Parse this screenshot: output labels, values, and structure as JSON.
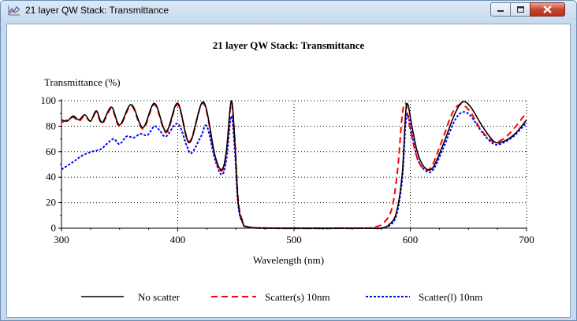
{
  "window": {
    "title": "21 layer QW Stack: Transmittance",
    "controls": [
      "minimize",
      "maximize",
      "close"
    ]
  },
  "chart_data": {
    "type": "line",
    "title": "21 layer QW Stack: Transmittance",
    "xlabel": "Wavelength (nm)",
    "ylabel": "Transmittance (%)",
    "xlim": [
      300,
      700
    ],
    "ylim": [
      0,
      100
    ],
    "x_ticks": [
      300,
      400,
      500,
      600,
      700
    ],
    "y_ticks": [
      0,
      20,
      40,
      60,
      80,
      100
    ],
    "grid": true,
    "legend_position": "bottom",
    "series": [
      {
        "name": "No scatter",
        "color": "#000000",
        "style": "solid",
        "points": [
          [
            300,
            85
          ],
          [
            305,
            84
          ],
          [
            310,
            88
          ],
          [
            315,
            85
          ],
          [
            320,
            89
          ],
          [
            325,
            84
          ],
          [
            330,
            92
          ],
          [
            335,
            83
          ],
          [
            343,
            95
          ],
          [
            350,
            81
          ],
          [
            360,
            97
          ],
          [
            370,
            79
          ],
          [
            380,
            98
          ],
          [
            390,
            76
          ],
          [
            400,
            98
          ],
          [
            410,
            67
          ],
          [
            422,
            99
          ],
          [
            432,
            57
          ],
          [
            438,
            46
          ],
          [
            442,
            62
          ],
          [
            446,
            100
          ],
          [
            449,
            70
          ],
          [
            452,
            20
          ],
          [
            456,
            4
          ],
          [
            460,
            1
          ],
          [
            480,
            0
          ],
          [
            560,
            0
          ],
          [
            575,
            0
          ],
          [
            582,
            3
          ],
          [
            588,
            12
          ],
          [
            593,
            42
          ],
          [
            596,
            90
          ],
          [
            598,
            97
          ],
          [
            601,
            82
          ],
          [
            606,
            60
          ],
          [
            612,
            48
          ],
          [
            619,
            47
          ],
          [
            628,
            65
          ],
          [
            638,
            89
          ],
          [
            645,
            99
          ],
          [
            652,
            95
          ],
          [
            662,
            80
          ],
          [
            672,
            68
          ],
          [
            680,
            68
          ],
          [
            690,
            74
          ],
          [
            700,
            85
          ]
        ]
      },
      {
        "name": "Scatter(s) 10nm",
        "color": "#ff0000",
        "style": "dashed",
        "points": [
          [
            300,
            83
          ],
          [
            305,
            85
          ],
          [
            310,
            87
          ],
          [
            315,
            84
          ],
          [
            320,
            88
          ],
          [
            325,
            84
          ],
          [
            330,
            91
          ],
          [
            335,
            82
          ],
          [
            343,
            94
          ],
          [
            350,
            80
          ],
          [
            360,
            96
          ],
          [
            370,
            78
          ],
          [
            380,
            97
          ],
          [
            390,
            75
          ],
          [
            400,
            97
          ],
          [
            410,
            68
          ],
          [
            422,
            98
          ],
          [
            432,
            56
          ],
          [
            438,
            45
          ],
          [
            442,
            60
          ],
          [
            446,
            98
          ],
          [
            449,
            70
          ],
          [
            452,
            22
          ],
          [
            456,
            5
          ],
          [
            460,
            1
          ],
          [
            480,
            0
          ],
          [
            560,
            0
          ],
          [
            570,
            1
          ],
          [
            577,
            4
          ],
          [
            584,
            15
          ],
          [
            589,
            45
          ],
          [
            593,
            88
          ],
          [
            596,
            98
          ],
          [
            599,
            82
          ],
          [
            605,
            58
          ],
          [
            611,
            47
          ],
          [
            618,
            48
          ],
          [
            627,
            68
          ],
          [
            636,
            90
          ],
          [
            643,
            97
          ],
          [
            651,
            92
          ],
          [
            661,
            77
          ],
          [
            671,
            68
          ],
          [
            680,
            70
          ],
          [
            690,
            79
          ],
          [
            700,
            91
          ]
        ]
      },
      {
        "name": "Scatter(l) 10nm",
        "color": "#0000ff",
        "style": "dotted",
        "points": [
          [
            300,
            46
          ],
          [
            310,
            52
          ],
          [
            318,
            57
          ],
          [
            326,
            60
          ],
          [
            334,
            62
          ],
          [
            340,
            67
          ],
          [
            345,
            70
          ],
          [
            350,
            66
          ],
          [
            356,
            72
          ],
          [
            362,
            71
          ],
          [
            368,
            74
          ],
          [
            374,
            73
          ],
          [
            380,
            80
          ],
          [
            385,
            76
          ],
          [
            390,
            72
          ],
          [
            400,
            82
          ],
          [
            408,
            64
          ],
          [
            412,
            59
          ],
          [
            420,
            72
          ],
          [
            425,
            80
          ],
          [
            432,
            54
          ],
          [
            438,
            42
          ],
          [
            442,
            55
          ],
          [
            446,
            88
          ],
          [
            449,
            62
          ],
          [
            452,
            18
          ],
          [
            456,
            4
          ],
          [
            460,
            1
          ],
          [
            480,
            0
          ],
          [
            560,
            0
          ],
          [
            575,
            0
          ],
          [
            582,
            2
          ],
          [
            588,
            10
          ],
          [
            593,
            38
          ],
          [
            596,
            82
          ],
          [
            598,
            89
          ],
          [
            601,
            75
          ],
          [
            606,
            55
          ],
          [
            612,
            46
          ],
          [
            619,
            45
          ],
          [
            628,
            62
          ],
          [
            638,
            84
          ],
          [
            645,
            91
          ],
          [
            652,
            88
          ],
          [
            662,
            75
          ],
          [
            672,
            66
          ],
          [
            680,
            67
          ],
          [
            690,
            73
          ],
          [
            700,
            83
          ]
        ]
      }
    ]
  }
}
